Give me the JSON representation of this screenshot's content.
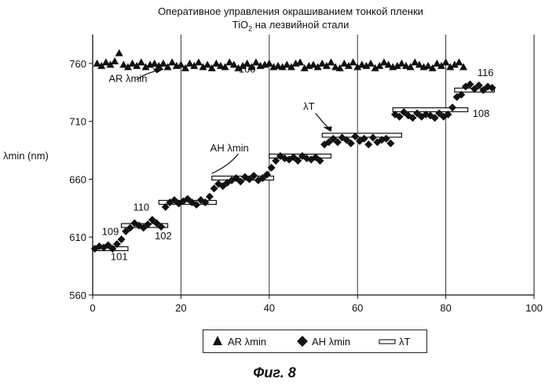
{
  "title": {
    "line1": "Оперативное управления окрашиванием тонкой пленки",
    "line2_prefix": "TiO",
    "line2_sub": "2",
    "line2_suffix": " на лезвийной стали"
  },
  "figure_caption": "Фиг. 8",
  "colors": {
    "markers": "#111111",
    "target_fill": "#ffffff",
    "axis": "#111111"
  },
  "chart_data": {
    "type": "scatter",
    "xlabel": "",
    "ylabel": "λmin (nm)",
    "xlim": [
      0,
      100
    ],
    "ylim": [
      560,
      785
    ],
    "x_ticks": [
      0,
      20,
      40,
      60,
      80,
      100
    ],
    "y_ticks": [
      560,
      610,
      660,
      710,
      760
    ],
    "grid": "vertical",
    "legend_position": "bottom",
    "series": [
      {
        "name": "AR λmin",
        "marker": "triangle",
        "x": [
          1,
          2,
          3,
          4,
          5,
          6,
          7,
          8,
          9,
          10,
          11,
          12,
          13,
          14,
          15,
          16,
          17,
          18,
          19,
          20,
          21,
          22,
          23,
          24,
          25,
          26,
          27,
          28,
          29,
          30,
          31,
          32,
          33,
          34,
          35,
          36,
          37,
          38,
          39,
          40,
          41,
          42,
          43,
          44,
          45,
          46,
          47,
          48,
          49,
          50,
          51,
          52,
          53,
          54,
          55,
          56,
          57,
          58,
          59,
          60,
          61,
          62,
          63,
          64,
          65,
          66,
          67,
          68,
          69,
          70,
          71,
          72,
          73,
          74,
          75,
          76,
          77,
          78,
          79,
          80,
          81,
          82,
          83,
          84
        ],
        "values": [
          760,
          758,
          761,
          759,
          762,
          769,
          759,
          757,
          760,
          758,
          761,
          757,
          759,
          760,
          758,
          760,
          757,
          761,
          758,
          759,
          756,
          760,
          758,
          761,
          757,
          759,
          756,
          760,
          758,
          757,
          761,
          759,
          756,
          758,
          760,
          757,
          761,
          758,
          759,
          760,
          757,
          758,
          757,
          759,
          757,
          760,
          761,
          756,
          758,
          759,
          757,
          760,
          758,
          761,
          757,
          756,
          760,
          758,
          761,
          757,
          759,
          758,
          760,
          756,
          758,
          761,
          759,
          757,
          758,
          760,
          758,
          757,
          761,
          759,
          757,
          758,
          756,
          760,
          758,
          761,
          757,
          759,
          761,
          757
        ]
      },
      {
        "name": "AH λmin",
        "marker": "diamond",
        "x": [
          0.5,
          1.5,
          2.5,
          3.5,
          4.5,
          5.5,
          6.5,
          7.5,
          8.5,
          9.5,
          10.5,
          11.5,
          12.5,
          13.5,
          14.5,
          15.5,
          16.5,
          17.5,
          18.5,
          19.5,
          20.5,
          21.5,
          22.5,
          23.5,
          24.5,
          25.5,
          26.5,
          27.5,
          28.5,
          29.5,
          30.5,
          31.5,
          32.5,
          33.5,
          34.5,
          35.5,
          36.5,
          37.5,
          38.5,
          39.5,
          40.5,
          41.5,
          42.5,
          43.5,
          44.5,
          45.5,
          46.5,
          47.5,
          48.5,
          49.5,
          50.5,
          51.5,
          52.5,
          53.5,
          54.5,
          55.5,
          56.5,
          57.5,
          58.5,
          59.5,
          60.5,
          61.5,
          62.5,
          63.5,
          64.5,
          65.5,
          66.5,
          67.5,
          68.5,
          69.5,
          70.5,
          71.5,
          72.5,
          73.5,
          74.5,
          75.5,
          76.5,
          77.5,
          78.5,
          79.5,
          80.5,
          81.5,
          82.5,
          83.5,
          84.5,
          85.5,
          86.5,
          87.5,
          88.5,
          89.5,
          90.5
        ],
        "values": [
          600,
          602,
          601,
          603,
          600,
          604,
          608,
          615,
          618,
          622,
          620,
          618,
          621,
          625,
          622,
          619,
          636,
          640,
          642,
          639,
          641,
          643,
          640,
          638,
          642,
          640,
          645,
          652,
          656,
          654,
          657,
          659,
          661,
          658,
          662,
          660,
          663,
          659,
          661,
          664,
          670,
          676,
          680,
          678,
          677,
          679,
          676,
          680,
          678,
          677,
          679,
          676,
          690,
          692,
          695,
          692,
          696,
          694,
          691,
          697,
          693,
          695,
          690,
          696,
          692,
          694,
          695,
          691,
          716,
          714,
          718,
          715,
          713,
          717,
          714,
          716,
          715,
          713,
          717,
          714,
          716,
          722,
          731,
          733,
          740,
          742,
          738,
          741,
          737,
          740,
          739
        ]
      },
      {
        "name": "λT",
        "marker": "bar",
        "segments": [
          {
            "x": [
              0,
              8
            ],
            "value": 600
          },
          {
            "x": [
              6.5,
              17
            ],
            "value": 620
          },
          {
            "x": [
              15,
              28
            ],
            "value": 640
          },
          {
            "x": [
              27,
              41
            ],
            "value": 661
          },
          {
            "x": [
              40,
              54
            ],
            "value": 680
          },
          {
            "x": [
              52,
              70
            ],
            "value": 698
          },
          {
            "x": [
              68,
              85
            ],
            "value": 720
          },
          {
            "x": [
              82,
              91
            ],
            "value": 737
          }
        ]
      }
    ],
    "annotations": [
      {
        "text": "AR λmin",
        "x": 8,
        "y": 744
      },
      {
        "text": "100",
        "x": 35,
        "y": 752
      },
      {
        "text": "AH λmin",
        "x": 31,
        "y": 684
      },
      {
        "text": "λT",
        "x": 49,
        "y": 720
      },
      {
        "text": "109",
        "x": 4,
        "y": 612
      },
      {
        "text": "110",
        "x": 11,
        "y": 633
      },
      {
        "text": "102",
        "x": 16,
        "y": 608
      },
      {
        "text": "101",
        "x": 6,
        "y": 590
      },
      {
        "text": "108",
        "x": 88,
        "y": 714
      },
      {
        "text": "116",
        "x": 89,
        "y": 749
      }
    ]
  }
}
